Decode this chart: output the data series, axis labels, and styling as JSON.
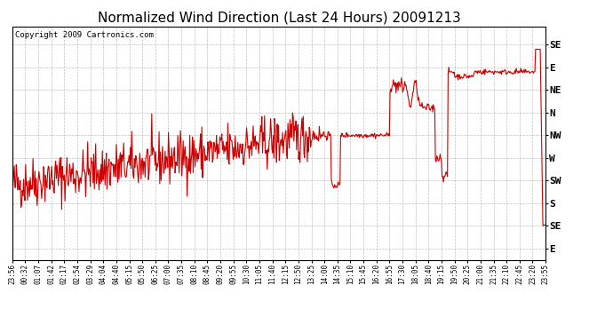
{
  "title": "Normalized Wind Direction (Last 24 Hours) 20091213",
  "copyright": "Copyright 2009 Cartronics.com",
  "line_color": "#cc0000",
  "bg_color": "#ffffff",
  "plot_bg_color": "#ffffff",
  "grid_color": "#b0b0b0",
  "ytick_labels": [
    "SE",
    "E",
    "NE",
    "N",
    "NW",
    "W",
    "SW",
    "S",
    "SE",
    "E"
  ],
  "ytick_values": [
    9,
    8,
    7,
    6,
    5,
    4,
    3,
    2,
    1,
    0
  ],
  "xtick_labels": [
    "23:56",
    "00:32",
    "01:07",
    "01:42",
    "02:17",
    "02:54",
    "03:29",
    "04:04",
    "04:40",
    "05:15",
    "05:50",
    "06:25",
    "07:00",
    "07:35",
    "08:10",
    "08:45",
    "09:20",
    "09:55",
    "10:30",
    "11:05",
    "11:40",
    "12:15",
    "12:50",
    "13:25",
    "14:00",
    "14:35",
    "15:10",
    "15:45",
    "16:20",
    "16:55",
    "17:30",
    "18:05",
    "18:40",
    "19:15",
    "19:50",
    "20:25",
    "21:00",
    "21:35",
    "22:10",
    "22:45",
    "23:20",
    "23:55"
  ],
  "title_fontsize": 11,
  "copyright_fontsize": 6.5,
  "tick_label_fontsize": 5.5,
  "ytick_label_fontsize": 8,
  "figsize": [
    6.9,
    3.75
  ],
  "dpi": 100
}
